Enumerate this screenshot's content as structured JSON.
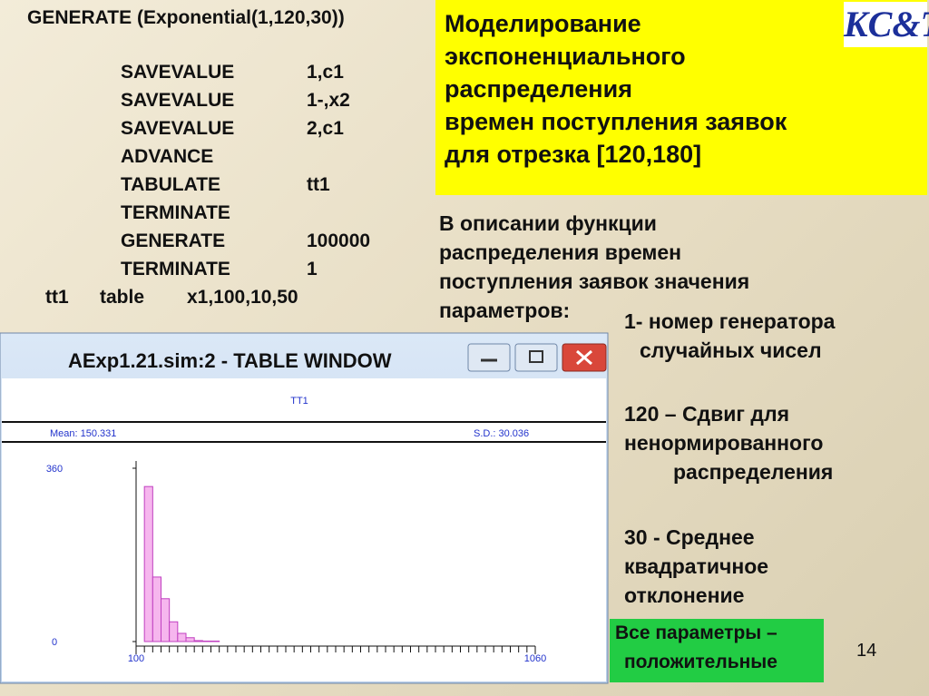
{
  "logo": "KC&T",
  "code": {
    "first_line": "GENERATE  (Exponential(1,120,30))",
    "lines": [
      {
        "op": "SAVEVALUE",
        "arg": "1,c1"
      },
      {
        "op": "SAVEVALUE",
        "arg": "1-,x2"
      },
      {
        "op": "SAVEVALUE",
        "arg": "2,c1"
      },
      {
        "op": "ADVANCE",
        "arg": null
      },
      {
        "op": "TABULATE",
        "arg": "tt1"
      },
      {
        "op": "TERMINATE",
        "arg": null
      },
      {
        "op": "GENERATE",
        "arg": "100000"
      },
      {
        "op": "TERMINATE",
        "arg": "1"
      }
    ],
    "last_line": [
      "tt1",
      "table",
      "x1,100,10,50"
    ]
  },
  "title_lines": [
    "Моделирование",
    "экспоненциального",
    "распределения",
    "времен поступления заявок",
    "для отрезка [120,180]"
  ],
  "intro_lines": [
    "В описании функции",
    "распределения времен",
    "поступления заявок значения",
    "параметров:"
  ],
  "params": [
    {
      "lines": [
        "1- номер генератора",
        "случайных чисел"
      ]
    },
    {
      "lines": [
        "120 – Сдвиг для",
        "ненормированного",
        "распределения"
      ]
    },
    {
      "lines": [
        "30  - Среднее",
        "квадратичное",
        "отклонение"
      ]
    }
  ],
  "note_lines": [
    "Все параметры –",
    "положительные"
  ],
  "page_number": "14",
  "window": {
    "title": "AExp1.21.sim:2  -  TABLE WINDOW",
    "table_name": "TT1",
    "mean": "Mean: 150.331",
    "sd": "S.D.: 30.036",
    "chart_data": {
      "type": "histogram",
      "bins": [
        120,
        140,
        160,
        180,
        200,
        220,
        240,
        260,
        280,
        300
      ],
      "values": [
        322,
        134,
        89,
        41,
        17,
        8,
        2,
        1,
        1
      ],
      "color": "#f6b6ee",
      "xlim": [
        100,
        1060
      ],
      "xticks": [
        100,
        1060
      ],
      "ylim": [
        0,
        360
      ],
      "yticks": [
        0,
        360
      ]
    }
  }
}
